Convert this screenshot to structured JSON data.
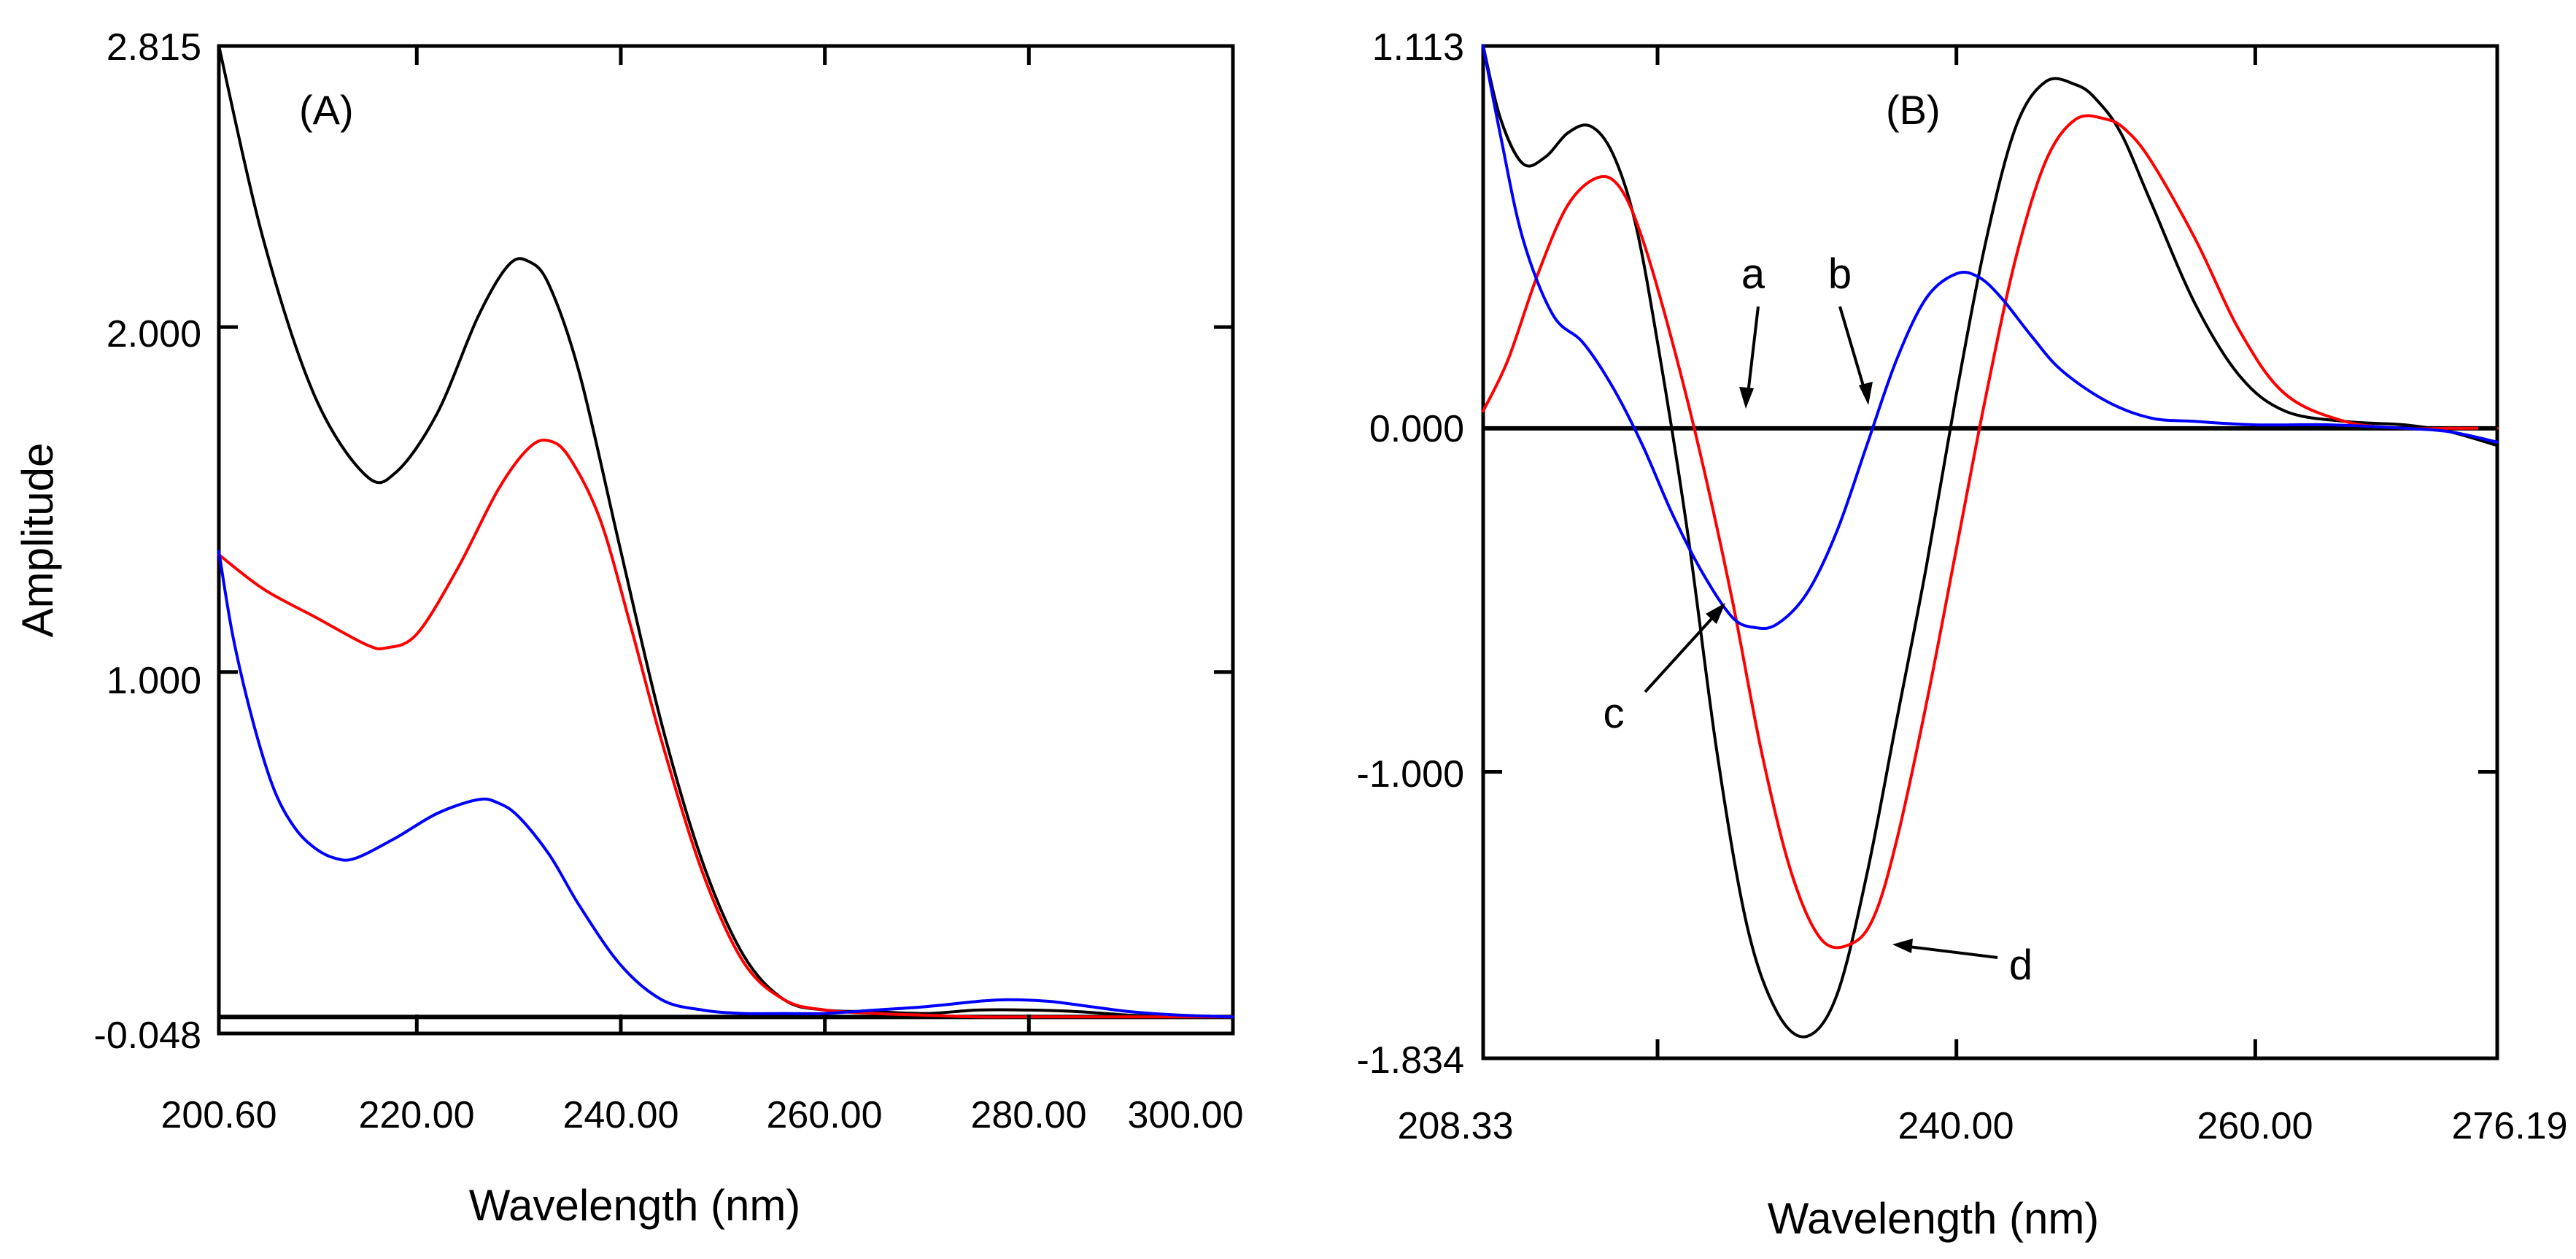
{
  "chart_data": [
    {
      "panel": "A",
      "type": "line",
      "title": "(A)",
      "xlabel": "Wavelength (nm)",
      "ylabel": "Amplitude",
      "xlim": [
        200.6,
        300.0
      ],
      "ylim": [
        -0.048,
        2.815
      ],
      "x_ticks": [
        200.6,
        220.0,
        240.0,
        260.0,
        280.0,
        300.0
      ],
      "x_tick_labels": [
        "200.60",
        "220.00",
        "240.00",
        "260.00",
        "280.00",
        "300.00"
      ],
      "y_ticks": [
        -0.048,
        1.0,
        2.0,
        2.815
      ],
      "y_tick_labels": [
        "-0.048",
        "1.000",
        "2.000",
        "2.815"
      ],
      "baseline": 0.0,
      "series": [
        {
          "name": "black",
          "color": "#000000",
          "x": [
            200.6,
            205,
            210,
            215,
            218,
            222,
            226,
            229,
            231,
            233,
            236,
            240,
            244,
            248,
            252,
            256,
            260,
            265,
            270,
            275,
            280,
            285,
            290,
            295,
            300
          ],
          "y": [
            2.815,
            2.25,
            1.8,
            1.57,
            1.58,
            1.75,
            2.03,
            2.18,
            2.19,
            2.12,
            1.86,
            1.35,
            0.85,
            0.45,
            0.18,
            0.05,
            0.02,
            0.015,
            0.01,
            0.02,
            0.02,
            0.015,
            0.005,
            0.0,
            0.0
          ]
        },
        {
          "name": "red",
          "color": "#ff0000",
          "x": [
            200.6,
            205,
            210,
            215,
            217,
            220,
            224,
            228,
            231,
            233,
            235,
            238,
            241,
            244,
            248,
            252,
            256,
            260,
            265,
            270,
            275,
            280,
            285,
            290,
            295,
            300
          ],
          "y": [
            1.34,
            1.24,
            1.16,
            1.08,
            1.07,
            1.11,
            1.3,
            1.53,
            1.65,
            1.67,
            1.62,
            1.44,
            1.13,
            0.8,
            0.42,
            0.16,
            0.05,
            0.02,
            0.01,
            0.005,
            0.0,
            0.0,
            0.0,
            0.0,
            0.0,
            0.0
          ]
        },
        {
          "name": "blue",
          "color": "#0000ff",
          "x": [
            200.6,
            202,
            204,
            206,
            208,
            210,
            212,
            214,
            218,
            222,
            226,
            228,
            230,
            233,
            236,
            240,
            244,
            248,
            252,
            256,
            260,
            265,
            270,
            275,
            278,
            282,
            286,
            290,
            295,
            300
          ],
          "y": [
            1.35,
            1.1,
            0.85,
            0.66,
            0.55,
            0.49,
            0.46,
            0.46,
            0.52,
            0.59,
            0.63,
            0.62,
            0.58,
            0.47,
            0.32,
            0.15,
            0.05,
            0.02,
            0.01,
            0.01,
            0.01,
            0.02,
            0.03,
            0.045,
            0.05,
            0.045,
            0.03,
            0.015,
            0.005,
            0.0
          ]
        }
      ]
    },
    {
      "panel": "B",
      "type": "line",
      "title": "(B)",
      "xlabel": "Wavelength (nm)",
      "ylabel": "",
      "xlim": [
        208.33,
        276.19
      ],
      "ylim": [
        -1.834,
        1.113
      ],
      "x_ticks": [
        208.33,
        240.0,
        260.0,
        276.19
      ],
      "x_tick_labels": [
        "208.33",
        "240.00",
        "260.00",
        "276.19"
      ],
      "extra_x_tick_marks": [
        220.0
      ],
      "y_ticks": [
        -1.834,
        -1.0,
        0.0,
        1.113
      ],
      "y_tick_labels": [
        "-1.834",
        "-1.000",
        "0.000",
        "1.113"
      ],
      "baseline": 0.0,
      "annotations": [
        "a",
        "b",
        "c",
        "d"
      ],
      "series": [
        {
          "name": "black",
          "color": "#000000",
          "x": [
            208.33,
            209.5,
            211,
            212.5,
            214,
            215.5,
            217,
            218.5,
            220,
            222,
            224,
            226,
            228,
            230,
            232,
            234,
            236,
            238,
            240,
            242,
            244,
            246,
            248,
            249.3,
            251,
            253,
            256,
            259,
            262,
            266,
            270,
            273,
            276.19
          ],
          "y": [
            1.113,
            0.9,
            0.77,
            0.79,
            0.86,
            0.88,
            0.8,
            0.6,
            0.25,
            -0.3,
            -0.95,
            -1.45,
            -1.7,
            -1.77,
            -1.65,
            -1.3,
            -0.85,
            -0.4,
            0.1,
            0.55,
            0.88,
            1.01,
            1.0,
            0.96,
            0.86,
            0.66,
            0.36,
            0.15,
            0.05,
            0.02,
            0.01,
            -0.01,
            -0.05
          ]
        },
        {
          "name": "red",
          "color": "#ff0000",
          "x": [
            208.33,
            210,
            212,
            214,
            216,
            217.5,
            219,
            221,
            223,
            225,
            227,
            229,
            231,
            233,
            234.5,
            236,
            238,
            240,
            242,
            244,
            246,
            248,
            250,
            251.3,
            253,
            256,
            259,
            262,
            266,
            270,
            273,
            276.19
          ],
          "y": [
            0.05,
            0.2,
            0.45,
            0.65,
            0.73,
            0.7,
            0.55,
            0.25,
            -0.1,
            -0.5,
            -0.95,
            -1.3,
            -1.49,
            -1.5,
            -1.42,
            -1.2,
            -0.8,
            -0.35,
            0.1,
            0.5,
            0.78,
            0.9,
            0.9,
            0.87,
            0.78,
            0.55,
            0.28,
            0.1,
            0.02,
            0.0,
            0.0,
            0.0
          ]
        },
        {
          "name": "blue",
          "color": "#0000ff",
          "x": [
            208.33,
            209.5,
            211,
            213,
            215,
            217,
            219,
            221,
            223,
            225,
            226.5,
            228,
            230,
            232,
            234,
            236,
            238,
            240,
            241.5,
            243,
            245,
            247,
            250,
            253,
            256,
            260,
            265,
            270,
            273,
            276.19
          ],
          "y": [
            1.113,
            0.85,
            0.55,
            0.33,
            0.25,
            0.12,
            -0.05,
            -0.25,
            -0.42,
            -0.55,
            -0.58,
            -0.57,
            -0.48,
            -0.3,
            -0.05,
            0.2,
            0.38,
            0.45,
            0.44,
            0.38,
            0.27,
            0.17,
            0.08,
            0.03,
            0.02,
            0.01,
            0.01,
            0.0,
            -0.01,
            -0.04
          ]
        }
      ]
    }
  ]
}
